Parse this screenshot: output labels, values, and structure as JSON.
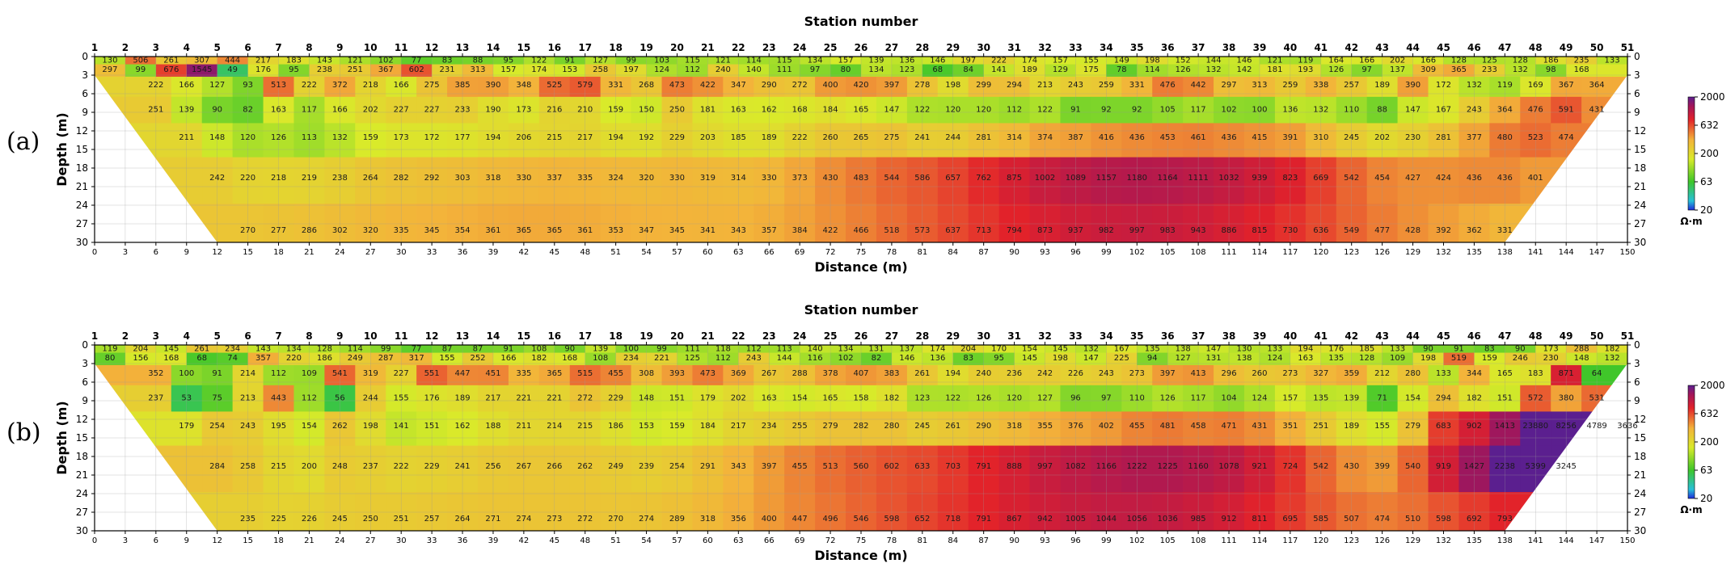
{
  "chart_data": [
    {
      "type": "heatmap",
      "panel": "(a)",
      "title": "Station number",
      "xlabel": "Distance (m)",
      "ylabel": "Depth (m)",
      "xlim": [
        0,
        150
      ],
      "ylim": [
        0,
        30
      ],
      "x_ticks": [
        0,
        3,
        6,
        9,
        12,
        15,
        18,
        21,
        24,
        27,
        30,
        33,
        36,
        39,
        42,
        45,
        48,
        51,
        54,
        57,
        60,
        63,
        66,
        69,
        72,
        75,
        78,
        81,
        84,
        87,
        90,
        93,
        96,
        99,
        102,
        105,
        108,
        111,
        114,
        117,
        120,
        123,
        126,
        129,
        132,
        135,
        138,
        141,
        144,
        147,
        150
      ],
      "y_ticks": [
        0,
        3,
        6,
        9,
        12,
        15,
        18,
        21,
        24,
        27,
        30
      ],
      "stations": [
        "1",
        "2",
        "3",
        "4",
        "5",
        "6",
        "7",
        "8",
        "9",
        "10",
        "11",
        "12",
        "13",
        "14",
        "15",
        "16",
        "17",
        "18",
        "19",
        "20",
        "21",
        "22",
        "23",
        "24",
        "25",
        "26",
        "27",
        "28",
        "29",
        "30",
        "31",
        "32",
        "33",
        "34",
        "35",
        "36",
        "37",
        "38",
        "39",
        "40",
        "41",
        "42",
        "43",
        "44",
        "45",
        "46",
        "47",
        "48",
        "49",
        "50",
        "51"
      ],
      "colorbar": {
        "ticks": [
          "20",
          "63",
          "200",
          "632",
          "2000"
        ],
        "unit": "Ω·m",
        "scale": "log"
      },
      "rows": [
        {
          "depth": 0.5,
          "x0": 1.5,
          "dx": 3,
          "values": [
            130,
            506,
            261,
            307,
            444,
            217,
            183,
            143,
            121,
            102,
            77,
            83,
            88,
            95,
            122,
            91,
            127,
            99,
            103,
            115,
            121,
            114,
            115,
            134,
            157,
            139,
            136,
            146,
            197,
            222,
            174,
            157,
            155,
            149,
            198,
            152,
            144,
            146,
            121,
            119,
            164,
            166,
            202,
            166,
            128,
            125,
            128,
            186,
            235,
            133
          ]
        },
        {
          "depth": 2.0,
          "x0": 1.5,
          "dx": 3,
          "values": [
            297,
            99,
            676,
            1545,
            49,
            176,
            95,
            238,
            251,
            367,
            602,
            231,
            313,
            157,
            174,
            153,
            258,
            197,
            124,
            112,
            240,
            140,
            111,
            97,
            80,
            134,
            123,
            68,
            84,
            141,
            189,
            129,
            175,
            78,
            114,
            126,
            132,
            142,
            181,
            193,
            126,
            97,
            137,
            309,
            365,
            233,
            132,
            98,
            168
          ]
        },
        {
          "depth": 4.5,
          "x0": 6,
          "dx": 3,
          "values": [
            222,
            166,
            127,
            93,
            513,
            222,
            372,
            218,
            166,
            275,
            385,
            390,
            348,
            525,
            579,
            331,
            268,
            473,
            422,
            347,
            290,
            272,
            400,
            420,
            397,
            278,
            198,
            299,
            294,
            213,
            243,
            259,
            331,
            476,
            442,
            297,
            313,
            259,
            338,
            257,
            189,
            390,
            172,
            132,
            119,
            169,
            367,
            364
          ]
        },
        {
          "depth": 8.5,
          "x0": 6,
          "dx": 3,
          "values": [
            251,
            139,
            90,
            82,
            163,
            117,
            166,
            202,
            227,
            227,
            233,
            190,
            173,
            216,
            210,
            159,
            150,
            250,
            181,
            163,
            162,
            168,
            184,
            165,
            147,
            122,
            120,
            120,
            112,
            122,
            91,
            92,
            92,
            105,
            117,
            102,
            100,
            136,
            132,
            110,
            88,
            147,
            167,
            243,
            364,
            476,
            591,
            431
          ]
        },
        {
          "depth": 13.0,
          "x0": 9,
          "dx": 3,
          "values": [
            211,
            148,
            120,
            126,
            113,
            132,
            159,
            173,
            172,
            177,
            194,
            206,
            215,
            217,
            194,
            192,
            229,
            203,
            185,
            189,
            222,
            260,
            265,
            275,
            241,
            244,
            281,
            314,
            374,
            387,
            416,
            436,
            453,
            461,
            436,
            415,
            391,
            310,
            245,
            202,
            230,
            281,
            377,
            480,
            523,
            474
          ]
        },
        {
          "depth": 19.5,
          "x0": 12,
          "dx": 3,
          "values": [
            242,
            220,
            218,
            219,
            238,
            264,
            282,
            292,
            303,
            318,
            330,
            337,
            335,
            324,
            320,
            330,
            319,
            314,
            330,
            373,
            430,
            483,
            544,
            586,
            657,
            762,
            875,
            1002,
            1089,
            1157,
            1180,
            1164,
            1111,
            1032,
            939,
            823,
            669,
            542,
            454,
            427,
            424,
            436,
            436,
            401
          ]
        },
        {
          "depth": 28.0,
          "x0": 15,
          "dx": 3,
          "values": [
            270,
            277,
            286,
            302,
            320,
            335,
            345,
            354,
            361,
            365,
            365,
            361,
            353,
            347,
            345,
            341,
            343,
            357,
            384,
            422,
            466,
            518,
            573,
            637,
            713,
            794,
            873,
            937,
            982,
            997,
            983,
            943,
            886,
            815,
            730,
            636,
            549,
            477,
            428,
            392,
            362,
            331
          ]
        }
      ]
    },
    {
      "type": "heatmap",
      "panel": "(b)",
      "title": "Station number",
      "xlabel": "Distance (m)",
      "ylabel": "Depth (m)",
      "xlim": [
        0,
        150
      ],
      "ylim": [
        0,
        30
      ],
      "x_ticks": [
        0,
        3,
        6,
        9,
        12,
        15,
        18,
        21,
        24,
        27,
        30,
        33,
        36,
        39,
        42,
        45,
        48,
        51,
        54,
        57,
        60,
        63,
        66,
        69,
        72,
        75,
        78,
        81,
        84,
        87,
        90,
        93,
        96,
        99,
        102,
        105,
        108,
        111,
        114,
        117,
        120,
        123,
        126,
        129,
        132,
        135,
        138,
        141,
        144,
        147,
        150
      ],
      "y_ticks": [
        0,
        3,
        6,
        9,
        12,
        15,
        18,
        21,
        24,
        27,
        30
      ],
      "stations": [
        "1",
        "2",
        "3",
        "4",
        "5",
        "6",
        "7",
        "8",
        "9",
        "10",
        "11",
        "12",
        "13",
        "14",
        "15",
        "16",
        "17",
        "18",
        "19",
        "20",
        "21",
        "22",
        "23",
        "24",
        "25",
        "26",
        "27",
        "28",
        "29",
        "30",
        "31",
        "32",
        "33",
        "34",
        "35",
        "36",
        "37",
        "38",
        "39",
        "40",
        "41",
        "42",
        "43",
        "44",
        "45",
        "46",
        "47",
        "48",
        "49",
        "50",
        "51"
      ],
      "colorbar": {
        "ticks": [
          "20",
          "63",
          "200",
          "632",
          "2000"
        ],
        "unit": "Ω·m",
        "scale": "log"
      },
      "rows": [
        {
          "depth": 0.5,
          "x0": 1.5,
          "dx": 3,
          "values": [
            119,
            204,
            145,
            261,
            234,
            143,
            134,
            128,
            114,
            99,
            77,
            87,
            87,
            91,
            108,
            90,
            139,
            100,
            99,
            111,
            118,
            112,
            113,
            140,
            134,
            131,
            137,
            174,
            204,
            170,
            154,
            145,
            132,
            167,
            135,
            138,
            147,
            130,
            133,
            194,
            176,
            185,
            133,
            90,
            91,
            83,
            90,
            173,
            288,
            182
          ]
        },
        {
          "depth": 2.0,
          "x0": 1.5,
          "dx": 3,
          "values": [
            80,
            156,
            168,
            68,
            74,
            357,
            220,
            186,
            249,
            287,
            317,
            155,
            252,
            166,
            182,
            168,
            108,
            234,
            221,
            125,
            112,
            243,
            144,
            116,
            102,
            82,
            146,
            136,
            83,
            95,
            145,
            198,
            147,
            225,
            94,
            127,
            131,
            138,
            124,
            163,
            135,
            128,
            109,
            198,
            519,
            159,
            246,
            230,
            148,
            132
          ]
        },
        {
          "depth": 4.5,
          "x0": 6,
          "dx": 3,
          "values": [
            352,
            100,
            91,
            214,
            112,
            109,
            541,
            319,
            227,
            551,
            447,
            451,
            335,
            365,
            515,
            455,
            308,
            393,
            473,
            369,
            267,
            288,
            378,
            407,
            383,
            261,
            194,
            240,
            236,
            242,
            226,
            243,
            273,
            397,
            413,
            296,
            260,
            273,
            327,
            359,
            212,
            280,
            133,
            344,
            165,
            183,
            871,
            64
          ]
        },
        {
          "depth": 8.5,
          "x0": 6,
          "dx": 3,
          "values": [
            237,
            53,
            75,
            213,
            443,
            112,
            56,
            244,
            155,
            176,
            189,
            217,
            221,
            221,
            272,
            229,
            148,
            151,
            179,
            202,
            163,
            154,
            165,
            158,
            182,
            123,
            122,
            126,
            120,
            127,
            96,
            97,
            110,
            126,
            117,
            104,
            124,
            157,
            135,
            139,
            71,
            154,
            294,
            182,
            151,
            572,
            380,
            531
          ]
        },
        {
          "depth": 13.0,
          "x0": 9,
          "dx": 3,
          "values": [
            179,
            254,
            243,
            195,
            154,
            262,
            198,
            141,
            151,
            162,
            188,
            211,
            214,
            215,
            186,
            153,
            159,
            184,
            217,
            234,
            255,
            279,
            282,
            280,
            245,
            261,
            290,
            318,
            355,
            376,
            402,
            455,
            481,
            458,
            471,
            431,
            351,
            251,
            189,
            155,
            279,
            683,
            902,
            1413,
            23880,
            8256,
            4789,
            3636
          ]
        },
        {
          "depth": 19.5,
          "x0": 12,
          "dx": 3,
          "values": [
            284,
            258,
            215,
            200,
            248,
            237,
            222,
            229,
            241,
            256,
            267,
            266,
            262,
            249,
            239,
            254,
            291,
            343,
            397,
            455,
            513,
            560,
            602,
            633,
            703,
            791,
            888,
            997,
            1082,
            1166,
            1222,
            1225,
            1160,
            1078,
            921,
            724,
            542,
            430,
            399,
            540,
            919,
            1427,
            2238,
            5399,
            3245
          ]
        },
        {
          "depth": 28.0,
          "x0": 15,
          "dx": 3,
          "values": [
            235,
            225,
            226,
            245,
            250,
            251,
            257,
            264,
            271,
            274,
            273,
            272,
            270,
            274,
            289,
            318,
            356,
            400,
            447,
            496,
            546,
            598,
            652,
            718,
            791,
            867,
            942,
            1005,
            1044,
            1056,
            1036,
            985,
            912,
            811,
            695,
            585,
            507,
            474,
            510,
            598,
            692,
            793
          ]
        }
      ]
    }
  ],
  "labels": {
    "panel_a": "(a)",
    "panel_b": "(b)"
  }
}
